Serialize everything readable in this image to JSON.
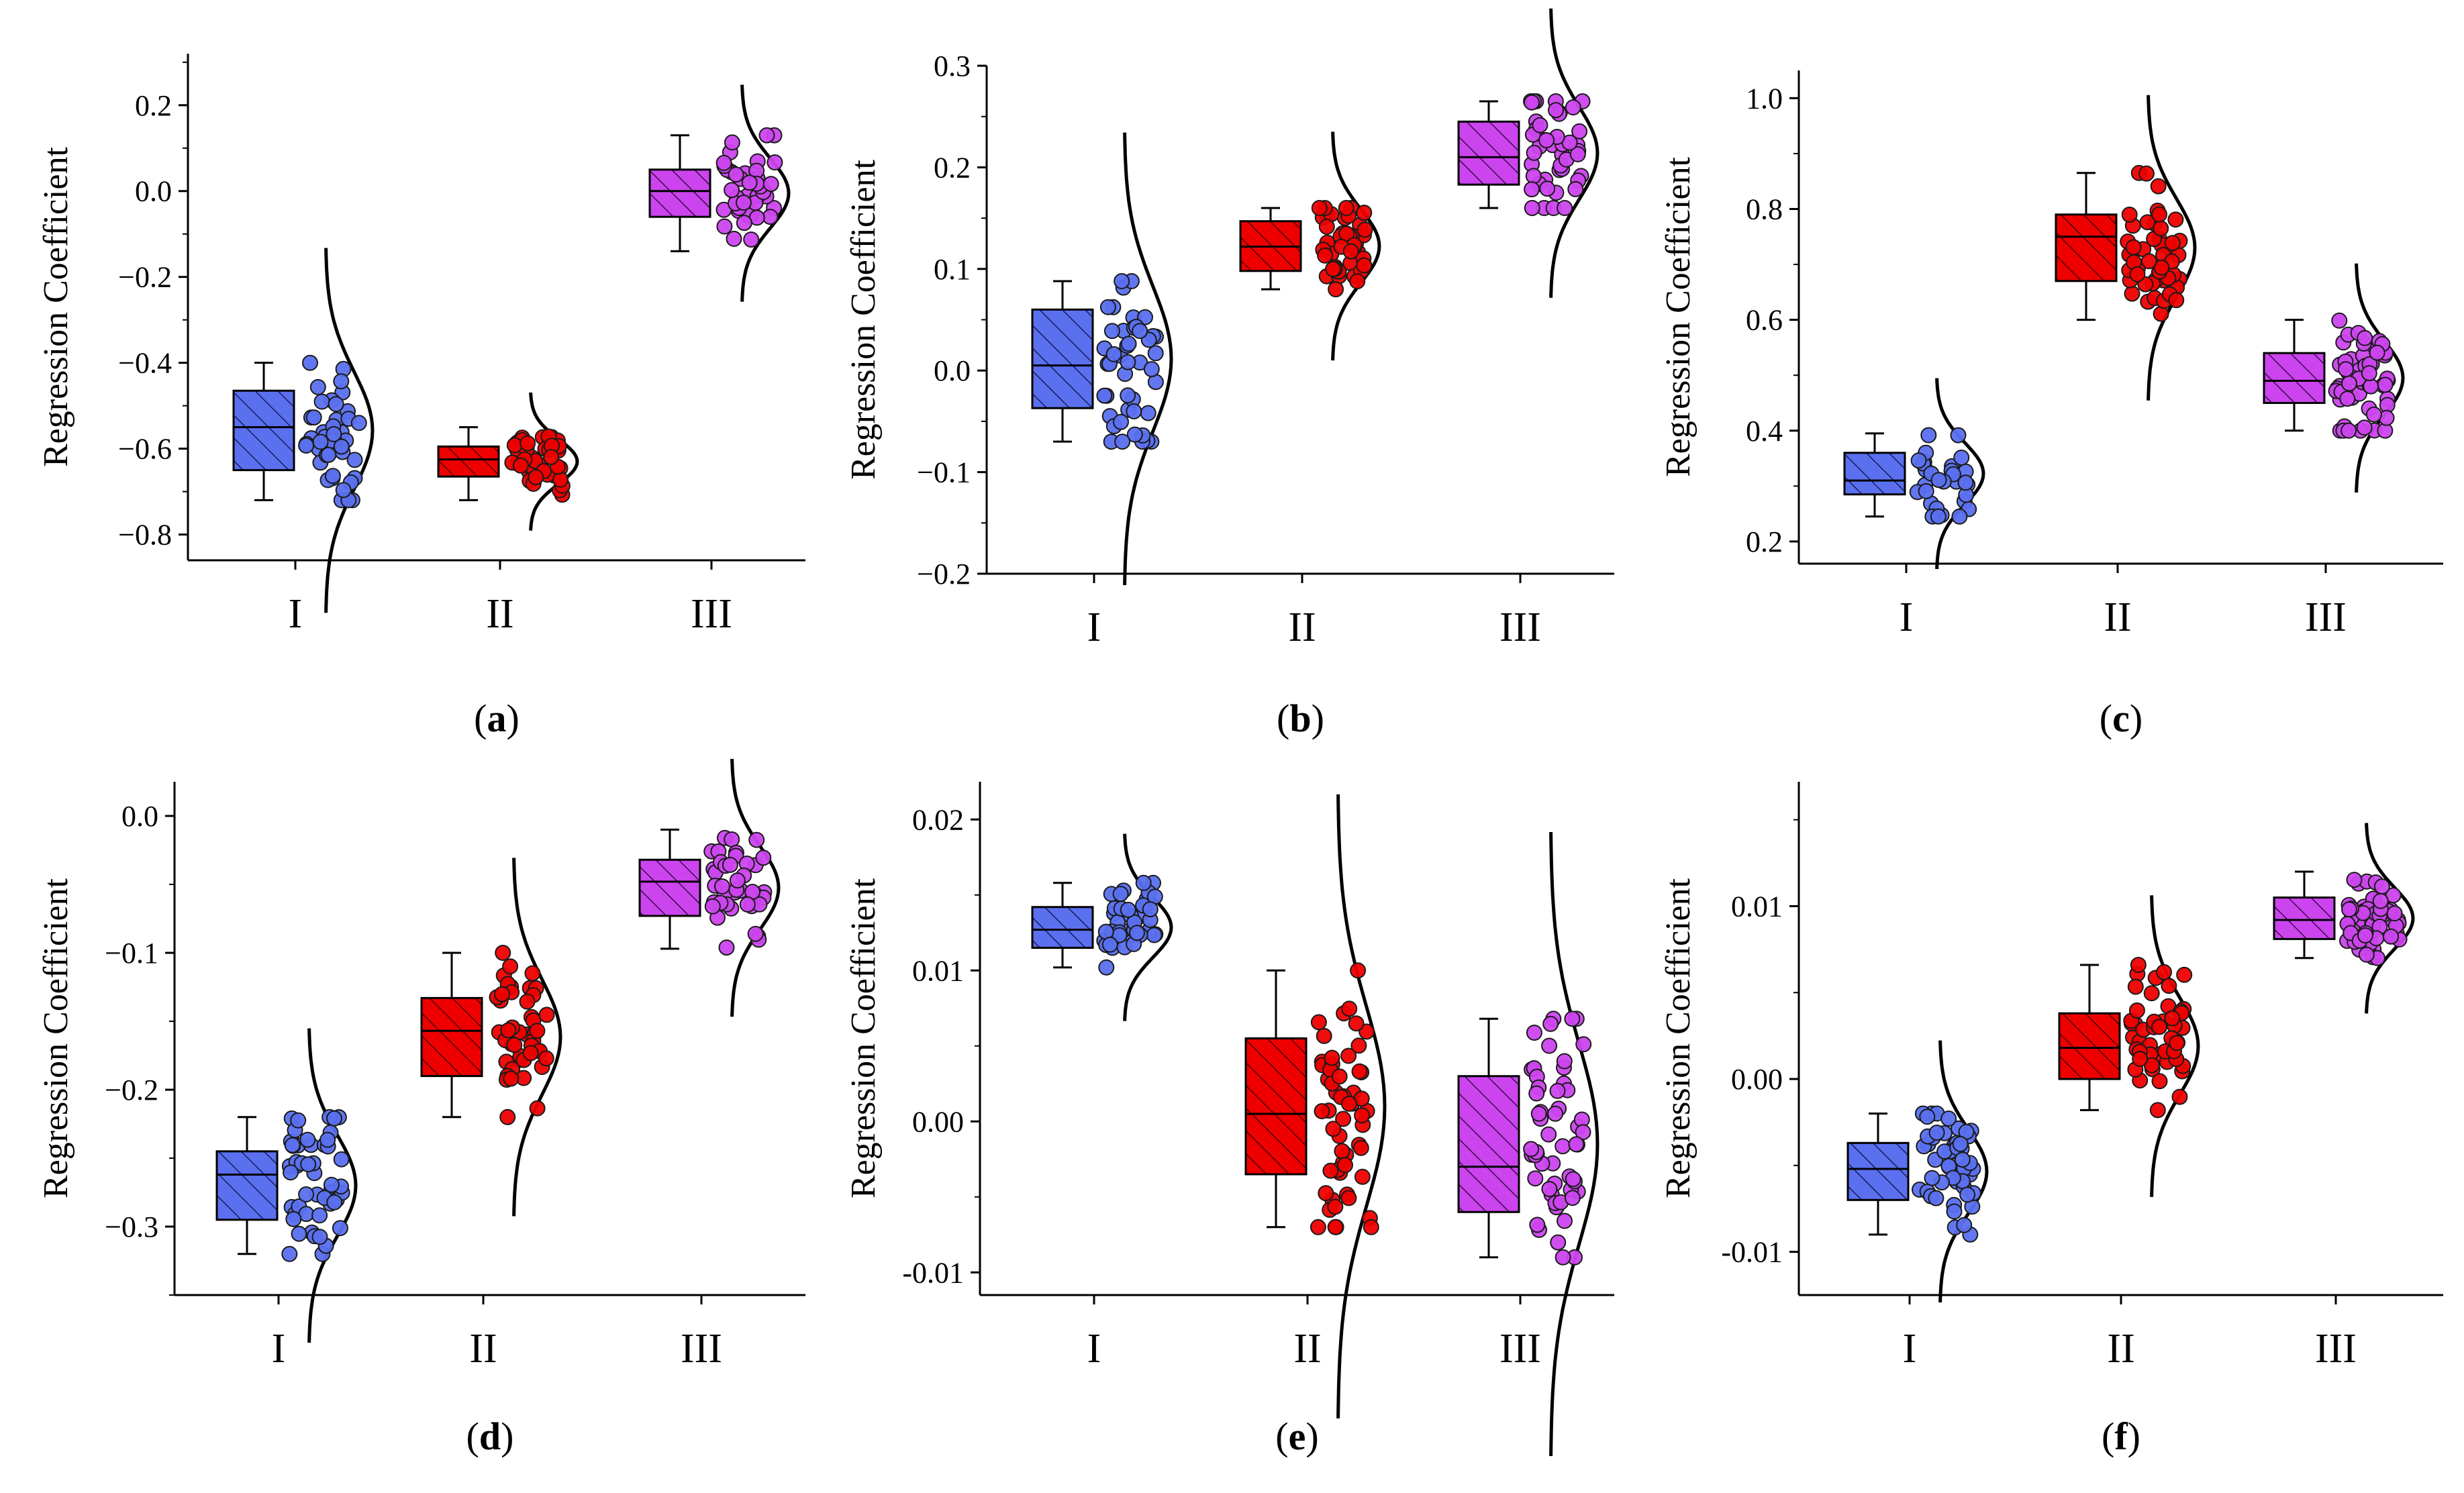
{
  "colors": {
    "I": "#5a70ee",
    "II": "#ee0000",
    "III": "#cc44ee"
  },
  "chart_data": [
    {
      "type": "box+scatter",
      "panel_label": "a",
      "ylabel": "Regression Coefficient",
      "categories": [
        "I",
        "II",
        "III"
      ],
      "ylim": [
        -0.86,
        0.32
      ],
      "yticks": [
        -0.8,
        -0.6,
        -0.4,
        -0.2,
        0.0,
        0.2
      ],
      "ytick_labels": [
        "−0.8",
        "−0.6",
        "−0.4",
        "−0.2",
        "0.0",
        "0.2"
      ],
      "series": [
        {
          "name": "I",
          "min": -0.72,
          "q1": -0.65,
          "median": -0.55,
          "q3": -0.465,
          "max": -0.4,
          "n": 45
        },
        {
          "name": "II",
          "min": -0.72,
          "q1": -0.665,
          "median": -0.625,
          "q3": -0.595,
          "max": -0.55,
          "n": 45
        },
        {
          "name": "III",
          "min": -0.14,
          "q1": -0.06,
          "median": 0.0,
          "q3": 0.05,
          "max": 0.13,
          "n": 45
        }
      ]
    },
    {
      "type": "box+scatter",
      "panel_label": "b",
      "ylabel": "Regression Coefficient",
      "categories": [
        "I",
        "II",
        "III"
      ],
      "ylim": [
        -0.2,
        0.3
      ],
      "yticks": [
        -0.2,
        -0.1,
        0.0,
        0.1,
        0.2,
        0.3
      ],
      "ytick_labels": [
        "−0.2",
        "−0.1",
        "0.0",
        "0.1",
        "0.2",
        "0.3"
      ],
      "series": [
        {
          "name": "I",
          "min": -0.07,
          "q1": -0.037,
          "median": 0.005,
          "q3": 0.06,
          "max": 0.088,
          "n": 45
        },
        {
          "name": "II",
          "min": 0.08,
          "q1": 0.098,
          "median": 0.122,
          "q3": 0.147,
          "max": 0.16,
          "n": 45
        },
        {
          "name": "III",
          "min": 0.16,
          "q1": 0.183,
          "median": 0.21,
          "q3": 0.245,
          "max": 0.265,
          "n": 45
        }
      ]
    },
    {
      "type": "box+scatter",
      "panel_label": "c",
      "ylabel": "Regression Coefficient",
      "categories": [
        "I",
        "II",
        "III"
      ],
      "ylim": [
        0.16,
        1.05
      ],
      "yticks": [
        0.2,
        0.4,
        0.6,
        0.8,
        1.0
      ],
      "ytick_labels": [
        "0.2",
        "0.4",
        "0.6",
        "0.8",
        "1.0"
      ],
      "series": [
        {
          "name": "I",
          "min": 0.245,
          "q1": 0.285,
          "median": 0.31,
          "q3": 0.36,
          "max": 0.395,
          "n": 30
        },
        {
          "name": "II",
          "min": 0.6,
          "q1": 0.67,
          "median": 0.75,
          "q3": 0.79,
          "max": 0.865,
          "n": 50
        },
        {
          "name": "III",
          "min": 0.4,
          "q1": 0.45,
          "median": 0.49,
          "q3": 0.54,
          "max": 0.6,
          "n": 60
        }
      ]
    },
    {
      "type": "box+scatter",
      "panel_label": "d",
      "ylabel": "Regression Coefficient",
      "categories": [
        "I",
        "II",
        "III"
      ],
      "ylim": [
        -0.35,
        0.025
      ],
      "yticks": [
        -0.3,
        -0.2,
        -0.1,
        0.0
      ],
      "ytick_labels": [
        "−0.3",
        "−0.2",
        "−0.1",
        "0.0"
      ],
      "series": [
        {
          "name": "I",
          "min": -0.32,
          "q1": -0.295,
          "median": -0.262,
          "q3": -0.245,
          "max": -0.22,
          "n": 50
        },
        {
          "name": "II",
          "min": -0.22,
          "q1": -0.19,
          "median": -0.157,
          "q3": -0.133,
          "max": -0.1,
          "n": 45
        },
        {
          "name": "III",
          "min": -0.097,
          "q1": -0.073,
          "median": -0.048,
          "q3": -0.032,
          "max": -0.01,
          "n": 40
        }
      ]
    },
    {
      "type": "box+scatter",
      "panel_label": "e",
      "ylabel": "Regression Coefficient",
      "categories": [
        "I",
        "II",
        "III"
      ],
      "ylim": [
        -0.0115,
        0.0225
      ],
      "yticks": [
        -0.01,
        0.0,
        0.01,
        0.02
      ],
      "ytick_labels": [
        "-0.01",
        "0.00",
        "0.01",
        "0.02"
      ],
      "series": [
        {
          "name": "I",
          "min": 0.0102,
          "q1": 0.0115,
          "median": 0.0127,
          "q3": 0.0142,
          "max": 0.0158,
          "n": 40
        },
        {
          "name": "II",
          "min": -0.007,
          "q1": -0.0035,
          "median": 0.0005,
          "q3": 0.0055,
          "max": 0.01,
          "n": 55
        },
        {
          "name": "III",
          "min": -0.009,
          "q1": -0.006,
          "median": -0.003,
          "q3": 0.003,
          "max": 0.0068,
          "n": 55
        }
      ]
    },
    {
      "type": "box+scatter",
      "panel_label": "f",
      "ylabel": "Regression Coefficient",
      "categories": [
        "I",
        "II",
        "III"
      ],
      "ylim": [
        -0.0125,
        0.0172
      ],
      "yticks": [
        -0.01,
        0.0,
        0.01
      ],
      "ytick_labels": [
        "-0.01",
        "0.00",
        "0.01"
      ],
      "series": [
        {
          "name": "I",
          "min": -0.009,
          "q1": -0.007,
          "median": -0.0052,
          "q3": -0.0037,
          "max": -0.002,
          "n": 50
        },
        {
          "name": "II",
          "min": -0.0018,
          "q1": 0.0,
          "median": 0.0018,
          "q3": 0.0038,
          "max": 0.0066,
          "n": 50
        },
        {
          "name": "III",
          "min": 0.007,
          "q1": 0.0081,
          "median": 0.0092,
          "q3": 0.0105,
          "max": 0.012,
          "n": 55
        }
      ]
    }
  ]
}
